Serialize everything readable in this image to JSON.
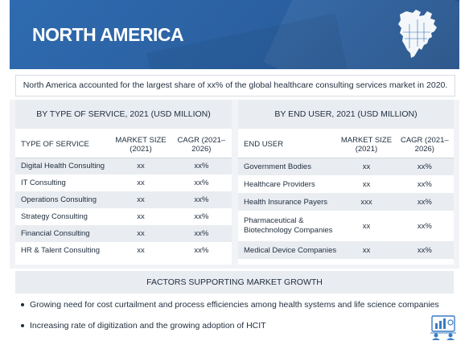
{
  "header": {
    "title": "NORTH AMERICA"
  },
  "summary": "North America accounted for the largest share of xx% of the global healthcare consulting services market in 2020.",
  "by_service": {
    "heading": "BY TYPE OF SERVICE, 2021 (USD MILLION)",
    "columns": [
      "TYPE OF SERVICE",
      "MARKET SIZE (2021)",
      "CAGR (2021–2026)"
    ],
    "rows": [
      [
        "Digital Health Consulting",
        "xx",
        "xx%"
      ],
      [
        "IT Consulting",
        "xx",
        "xx%"
      ],
      [
        "Operations Consulting",
        "xx",
        "xx%"
      ],
      [
        "Strategy Consulting",
        "xx",
        "xx%"
      ],
      [
        "Financial Consulting",
        "xx",
        "xx%"
      ],
      [
        "HR & Talent Consulting",
        "xx",
        "xx%"
      ]
    ]
  },
  "by_end_user": {
    "heading": "BY END USER, 2021 (USD MILLION)",
    "columns": [
      "END USER",
      "MARKET SIZE (2021)",
      "CAGR (2021–2026)"
    ],
    "rows": [
      [
        "Government Bodies",
        "xx",
        "xx%"
      ],
      [
        "Healthcare Providers",
        "xx",
        "xx%"
      ],
      [
        "Health Insurance Payers",
        "xxx",
        "xx%"
      ],
      [
        "Pharmaceutical & Biotechnology Companies",
        "xx",
        "xx%"
      ],
      [
        "Medical Device Companies",
        "xx",
        "xx%"
      ]
    ]
  },
  "factors": {
    "heading": "FACTORS SUPPORTING MARKET GROWTH",
    "items": [
      "Growing need for cost curtailment and process efficiencies among health systems and life science companies",
      "Increasing rate of digitization and the growing adoption of HCIT"
    ]
  },
  "icons": {
    "map": "north-america-map-icon",
    "corner": "consulting-analytics-icon"
  },
  "colors": {
    "header": "#2f6bb0",
    "row_alt": "#e9ecf1",
    "section_bg": "#f1f3f6"
  }
}
